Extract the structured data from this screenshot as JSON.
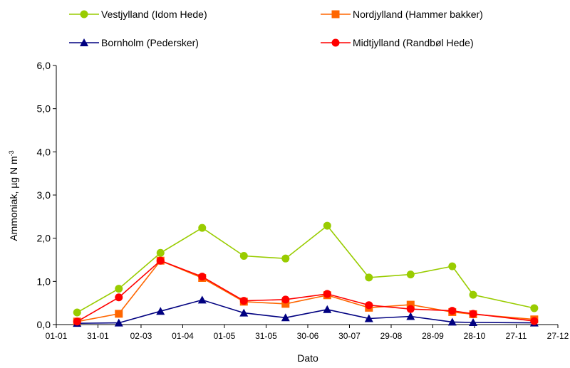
{
  "chart_data": {
    "type": "line",
    "xlabel": "Dato",
    "ylabel": "Ammoniak, µg N m",
    "ylabel_sup": "-3",
    "xlim": [
      "2000-01-01",
      "2000-12-27"
    ],
    "ylim": [
      0,
      6
    ],
    "yticks": [
      "0,0",
      "1,0",
      "2,0",
      "3,0",
      "4,0",
      "5,0",
      "6,0"
    ],
    "xticks": [
      {
        "date": "2000-01-01",
        "label": "01-01"
      },
      {
        "date": "2000-01-31",
        "label": "31-01"
      },
      {
        "date": "2000-03-02",
        "label": "02-03"
      },
      {
        "date": "2000-04-01",
        "label": "01-04"
      },
      {
        "date": "2000-05-01",
        "label": "01-05"
      },
      {
        "date": "2000-05-31",
        "label": "31-05"
      },
      {
        "date": "2000-06-30",
        "label": "30-06"
      },
      {
        "date": "2000-07-30",
        "label": "30-07"
      },
      {
        "date": "2000-08-29",
        "label": "29-08"
      },
      {
        "date": "2000-09-28",
        "label": "28-09"
      },
      {
        "date": "2000-10-28",
        "label": "28-10"
      },
      {
        "date": "2000-11-27",
        "label": "27-11"
      },
      {
        "date": "2000-12-27",
        "label": "27-12"
      }
    ],
    "grid": false,
    "legend_position": "top",
    "series": [
      {
        "name": "Vestjylland (Idom Hede)",
        "color": "#99cc00",
        "marker": "circle",
        "points": [
          [
            "2000-01-16",
            0.28
          ],
          [
            "2000-02-15",
            0.83
          ],
          [
            "2000-03-16",
            1.66
          ],
          [
            "2000-04-15",
            2.24
          ],
          [
            "2000-05-15",
            1.59
          ],
          [
            "2000-06-14",
            1.53
          ],
          [
            "2000-07-14",
            2.29
          ],
          [
            "2000-08-13",
            1.09
          ],
          [
            "2000-09-12",
            1.16
          ],
          [
            "2000-10-12",
            1.35
          ],
          [
            "2000-10-27",
            0.69
          ],
          [
            "2000-12-10",
            0.38
          ]
        ]
      },
      {
        "name": "Nordjylland (Hammer bakker)",
        "color": "#ff6600",
        "marker": "square",
        "points": [
          [
            "2000-01-16",
            0.07
          ],
          [
            "2000-02-15",
            0.25
          ],
          [
            "2000-03-16",
            1.48
          ],
          [
            "2000-04-15",
            1.08
          ],
          [
            "2000-05-15",
            0.53
          ],
          [
            "2000-06-14",
            0.48
          ],
          [
            "2000-07-14",
            0.68
          ],
          [
            "2000-08-13",
            0.39
          ],
          [
            "2000-09-12",
            0.46
          ],
          [
            "2000-10-12",
            0.29
          ],
          [
            "2000-10-27",
            0.24
          ],
          [
            "2000-12-10",
            0.12
          ]
        ]
      },
      {
        "name": "Bornholm (Pedersker)",
        "color": "#000080",
        "marker": "triangle",
        "points": [
          [
            "2000-01-16",
            0.03
          ],
          [
            "2000-02-15",
            0.04
          ],
          [
            "2000-03-16",
            0.31
          ],
          [
            "2000-04-15",
            0.57
          ],
          [
            "2000-05-15",
            0.27
          ],
          [
            "2000-06-14",
            0.16
          ],
          [
            "2000-07-14",
            0.35
          ],
          [
            "2000-08-13",
            0.14
          ],
          [
            "2000-09-12",
            0.19
          ],
          [
            "2000-10-12",
            0.06
          ],
          [
            "2000-10-27",
            0.05
          ],
          [
            "2000-12-10",
            0.04
          ]
        ]
      },
      {
        "name": "Midtjylland (Randbøl Hede)",
        "color": "#ff0000",
        "marker": "circle",
        "points": [
          [
            "2000-01-16",
            0.07
          ],
          [
            "2000-02-15",
            0.63
          ],
          [
            "2000-03-16",
            1.48
          ],
          [
            "2000-04-15",
            1.11
          ],
          [
            "2000-05-15",
            0.55
          ],
          [
            "2000-06-14",
            0.58
          ],
          [
            "2000-07-14",
            0.71
          ],
          [
            "2000-08-13",
            0.45
          ],
          [
            "2000-09-12",
            0.36
          ],
          [
            "2000-10-12",
            0.32
          ],
          [
            "2000-10-27",
            0.25
          ],
          [
            "2000-12-10",
            0.08
          ]
        ]
      }
    ]
  }
}
